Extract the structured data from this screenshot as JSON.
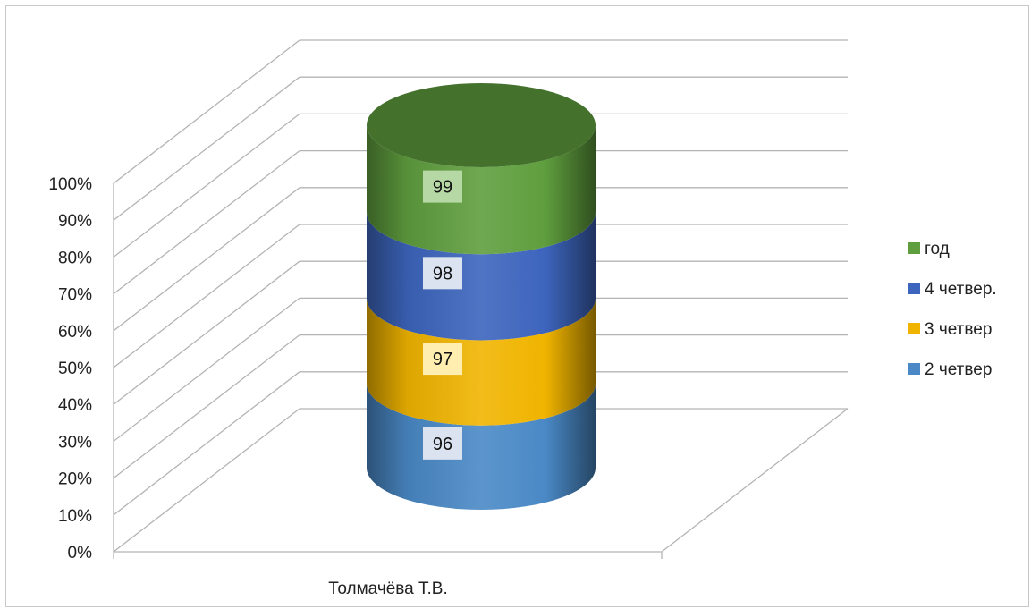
{
  "chart_data": {
    "type": "bar",
    "style": "3d-stacked-100-percent-cylinder",
    "categories": [
      "Толмачёва Т.В."
    ],
    "series": [
      {
        "name": "2 четвер",
        "values": [
          96
        ],
        "color": "#4a89c6",
        "label_bg": "#dbe3f0"
      },
      {
        "name": "3 четвер",
        "values": [
          97
        ],
        "color": "#f0b400",
        "label_bg": "#ffeeb0"
      },
      {
        "name": "4 четвер.",
        "values": [
          98
        ],
        "color": "#3d65bd",
        "label_bg": "#dbe3f0"
      },
      {
        "name": "год",
        "values": [
          99
        ],
        "color": "#5f9e3e",
        "label_bg": "#b6d8a4"
      }
    ],
    "ylim": [
      0,
      100
    ],
    "yticks": [
      "0%",
      "10%",
      "20%",
      "30%",
      "40%",
      "50%",
      "60%",
      "70%",
      "80%",
      "90%",
      "100%"
    ],
    "grid": true,
    "legend_position": "right"
  }
}
